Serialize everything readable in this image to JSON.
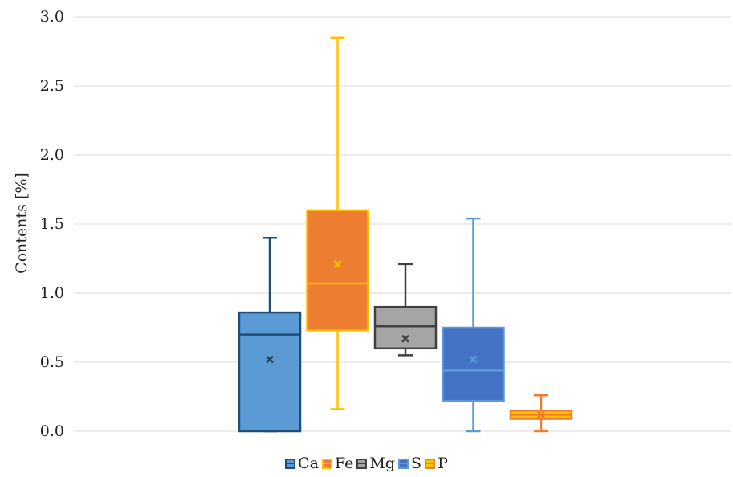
{
  "chart_data": {
    "type": "boxplot",
    "ylabel": "Contents [%]",
    "ylim": [
      0,
      3.0
    ],
    "yticks": [
      "0.0",
      "0.5",
      "1.0",
      "1.5",
      "2.0",
      "2.5",
      "3.0"
    ],
    "grid": true,
    "legend_position": "bottom",
    "series": [
      {
        "name": "Ca",
        "min": 0.0,
        "q1": 0.0,
        "median": 0.7,
        "q3": 0.86,
        "max": 1.4,
        "mean": 0.52,
        "fill": "#5b9bd5",
        "stroke": "#1f4e79",
        "mean_color": "#333f50"
      },
      {
        "name": "Fe",
        "min": 0.16,
        "q1": 0.73,
        "median": 1.07,
        "q3": 1.6,
        "max": 2.85,
        "mean": 1.21,
        "fill": "#ed7d31",
        "stroke": "#ffc000",
        "mean_color": "#ffc000"
      },
      {
        "name": "Mg",
        "min": 0.55,
        "q1": 0.6,
        "median": 0.76,
        "q3": 0.9,
        "max": 1.21,
        "mean": 0.67,
        "fill": "#a5a5a5",
        "stroke": "#404040",
        "mean_color": "#404040"
      },
      {
        "name": "S",
        "min": 0.0,
        "q1": 0.22,
        "median": 0.44,
        "q3": 0.75,
        "max": 1.54,
        "mean": 0.52,
        "fill": "#4472c4",
        "stroke": "#5b9bd5",
        "mean_color": "#5b9bd5"
      },
      {
        "name": "P",
        "min": 0.0,
        "q1": 0.09,
        "median": 0.12,
        "q3": 0.15,
        "max": 0.26,
        "mean": 0.12,
        "fill": "#ffc000",
        "stroke": "#ed7d31",
        "mean_color": "#ed7d31"
      }
    ]
  }
}
